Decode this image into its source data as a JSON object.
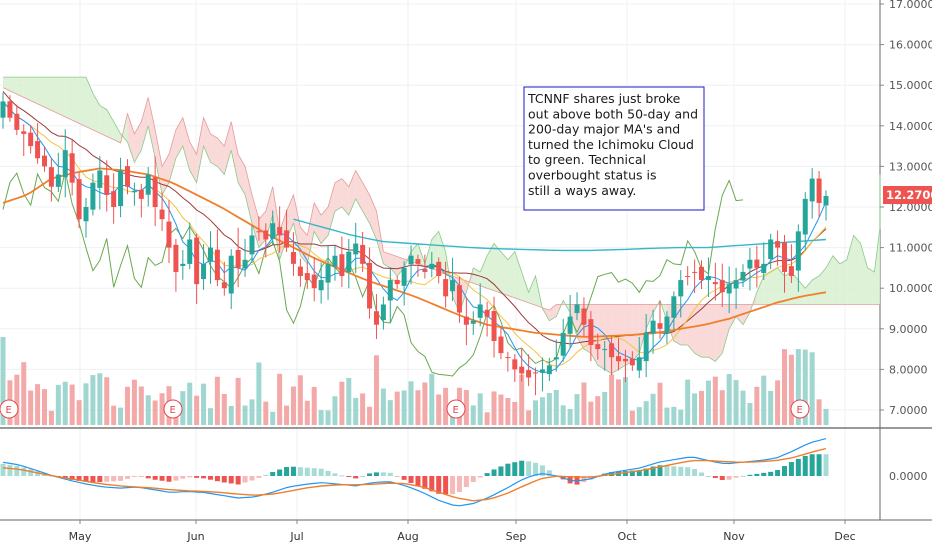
{
  "chart_data": {
    "type": "candlestick",
    "symbol": "TCNNF",
    "price_axis": {
      "ticks": [
        "17.0000",
        "16.0000",
        "15.0000",
        "14.0000",
        "13.0000",
        "12.0000",
        "11.0000",
        "10.0000",
        "9.0000",
        "8.0000",
        "7.0000"
      ],
      "tick_values": [
        17,
        16,
        15,
        14,
        13,
        12,
        11,
        10,
        9,
        8,
        7
      ],
      "ylim": [
        6.7,
        17.0
      ]
    },
    "macd_axis": {
      "ticks": [
        "0.0000"
      ]
    },
    "x_labels": [
      "May",
      "Jun",
      "Jul",
      "Aug",
      "Sep",
      "Oct",
      "Nov",
      "Dec"
    ],
    "last_price": {
      "label": "12.2700",
      "value": 12.27,
      "color": "#ef5350"
    },
    "earnings_marker_label": "E",
    "earnings_marker_count": 4,
    "annotation": "TCNNF shares just broke out above both 50-day and 200-day major MA's and turned the Ichimoku Cloud to green. Technical overbought status is still a ways away.",
    "colors": {
      "up": "#26a69a",
      "down": "#ef5350",
      "ma50": "#f07f2b",
      "ma200": "#35b8c8",
      "cloud_bear": "#f9d2d2",
      "cloud_bull": "#d8f0d0",
      "kijun": "#9e3a3a",
      "tenkan": "#2196f3",
      "chikou": "#6aa84f",
      "annotation_border": "#1a1acc"
    },
    "anchors": {
      "close": [
        14.6,
        14.2,
        13.9,
        13.8,
        13.5,
        13.2,
        13.0,
        12.5,
        12.8,
        13.4,
        12.6,
        11.7,
        12.0,
        12.6,
        12.9,
        12.3,
        12.0,
        12.9,
        12.5,
        12.4,
        12.2,
        12.8,
        12.0,
        11.7,
        11.0,
        10.4,
        10.6,
        11.2,
        10.1,
        10.6,
        11.0,
        10.2,
        10.0,
        10.8,
        10.5,
        10.7,
        11.3,
        11.4,
        11.2,
        11.6,
        11.3,
        11.0,
        10.6,
        10.3,
        10.2,
        10.0,
        10.2,
        10.6,
        10.8,
        10.3,
        10.9,
        11.1,
        10.6,
        9.5,
        9.1,
        9.6,
        10.2,
        10.1,
        10.5,
        10.8,
        10.6,
        10.4,
        10.6,
        10.3,
        9.8,
        10.2,
        9.4,
        9.1,
        9.2,
        9.6,
        9.3,
        8.7,
        8.4,
        8.3,
        8.0,
        7.9,
        7.8,
        7.9,
        8.0,
        8.1,
        8.3,
        8.9,
        9.3,
        9.6,
        9.1,
        8.6,
        8.5,
        8.5,
        8.3,
        8.2,
        8.2,
        8.1,
        8.3,
        8.9,
        9.2,
        9.0,
        9.3,
        9.8,
        10.2,
        10.3,
        10.4,
        10.2,
        10.3,
        10.1,
        9.9,
        10.1,
        10.2,
        10.4,
        10.7,
        10.5,
        10.6,
        11.2,
        11.0,
        10.4,
        10.3,
        11.4,
        12.2,
        12.7,
        12.1,
        12.27
      ],
      "ma50": [
        12.1,
        12.3,
        12.7,
        12.85,
        12.95,
        12.9,
        12.8,
        12.6,
        12.3,
        12.0,
        11.65,
        11.3,
        11.0,
        10.7,
        10.45,
        10.2,
        10.0,
        9.8,
        9.55,
        9.3,
        9.1,
        9.0,
        8.9,
        8.85,
        8.8,
        8.82,
        8.85,
        8.9,
        9.0,
        9.1,
        9.25,
        9.45,
        9.65,
        9.8,
        9.9
      ],
      "ma200": [
        11.7,
        11.5,
        11.3,
        11.15,
        11.1,
        11.05,
        11.0,
        10.97,
        10.95,
        10.93,
        10.93,
        10.95,
        10.98,
        11.0,
        11.0,
        11.05,
        11.1,
        11.15,
        11.2
      ],
      "macd_line": [
        0.25,
        0.2,
        0.1,
        0.0,
        -0.08,
        -0.15,
        -0.2,
        -0.22,
        -0.2,
        -0.25,
        -0.3,
        -0.28,
        -0.3,
        -0.35,
        -0.4,
        -0.38,
        -0.3,
        -0.2,
        -0.15,
        -0.12,
        -0.15,
        -0.18,
        -0.12,
        -0.1,
        -0.18,
        -0.3,
        -0.45,
        -0.55,
        -0.5,
        -0.38,
        -0.22,
        -0.05,
        0.05,
        0.0,
        -0.1,
        -0.05,
        0.05,
        0.1,
        0.15,
        0.25,
        0.3,
        0.35,
        0.28,
        0.22,
        0.25,
        0.28,
        0.32,
        0.45,
        0.6,
        0.68
      ],
      "macd_signal": [
        0.15,
        0.12,
        0.06,
        0.0,
        -0.05,
        -0.1,
        -0.15,
        -0.18,
        -0.2,
        -0.22,
        -0.25,
        -0.27,
        -0.28,
        -0.3,
        -0.33,
        -0.35,
        -0.33,
        -0.28,
        -0.22,
        -0.18,
        -0.16,
        -0.16,
        -0.15,
        -0.13,
        -0.14,
        -0.2,
        -0.3,
        -0.4,
        -0.45,
        -0.42,
        -0.32,
        -0.18,
        -0.05,
        0.0,
        -0.02,
        -0.02,
        0.02,
        0.06,
        0.1,
        0.16,
        0.22,
        0.28,
        0.28,
        0.26,
        0.25,
        0.26,
        0.28,
        0.33,
        0.42,
        0.5
      ]
    }
  }
}
